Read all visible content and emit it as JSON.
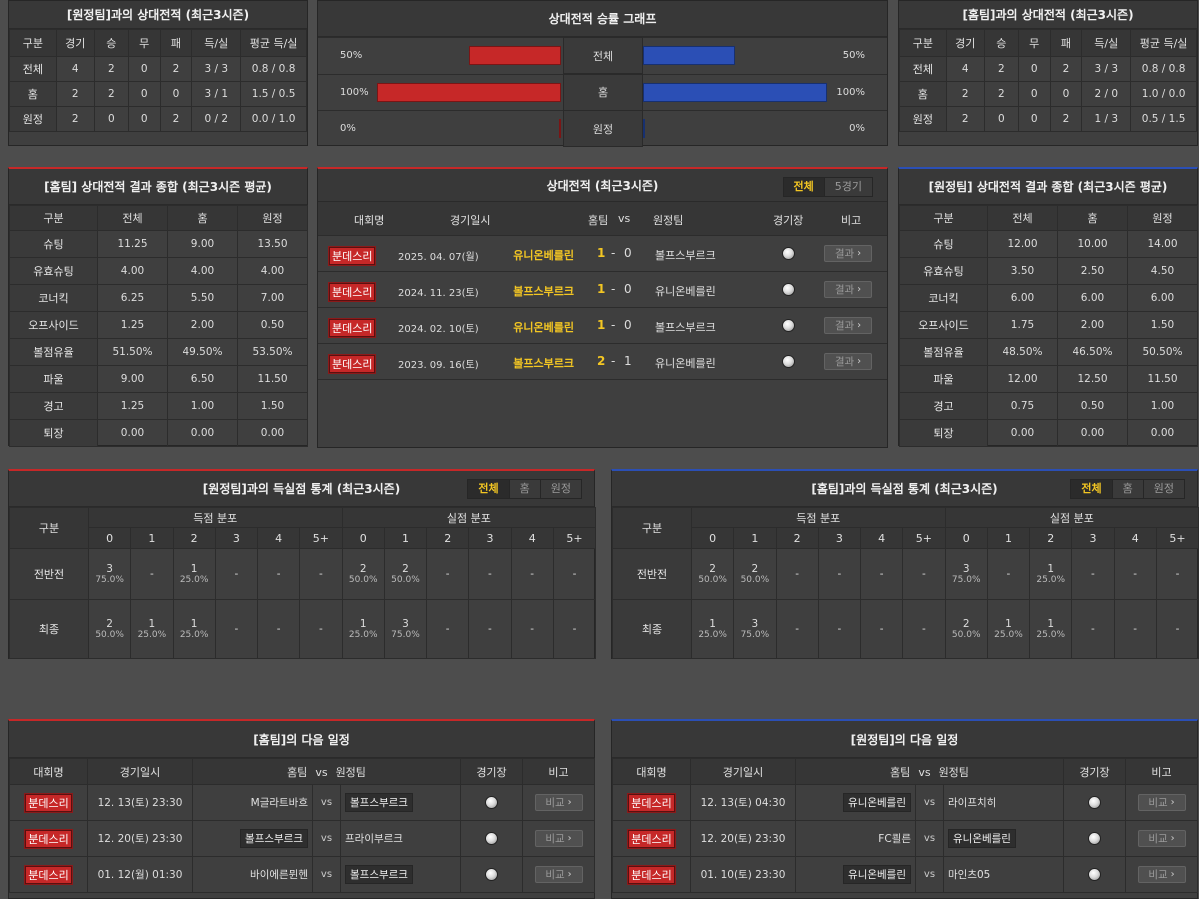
{
  "h2h_left": {
    "title": "[원정팀]과의 상대전적 (최근3시즌)",
    "headers": [
      "구분",
      "경기",
      "승",
      "무",
      "패",
      "득/실",
      "평균 득/실"
    ],
    "rows": [
      [
        "전체",
        "4",
        "2",
        "0",
        "2",
        "3 / 3",
        "0.8 / 0.8"
      ],
      [
        "홈",
        "2",
        "2",
        "0",
        "0",
        "3 / 1",
        "1.5 / 0.5"
      ],
      [
        "원정",
        "2",
        "0",
        "0",
        "2",
        "0 / 2",
        "0.0 / 1.0"
      ]
    ]
  },
  "h2h_right": {
    "title": "[홈팀]과의 상대전적 (최근3시즌)",
    "headers": [
      "구분",
      "경기",
      "승",
      "무",
      "패",
      "득/실",
      "평균 득/실"
    ],
    "rows": [
      [
        "전체",
        "4",
        "2",
        "0",
        "2",
        "3 / 3",
        "0.8 / 0.8"
      ],
      [
        "홈",
        "2",
        "2",
        "0",
        "0",
        "2 / 0",
        "1.0 / 0.0"
      ],
      [
        "원정",
        "2",
        "0",
        "0",
        "2",
        "1 / 3",
        "0.5 / 1.5"
      ]
    ]
  },
  "win_graph": {
    "title": "상대전적 승률 그래프",
    "rows": [
      {
        "label": "전체",
        "left": "50%",
        "right": "50%",
        "left_val": 50,
        "right_val": 50
      },
      {
        "label": "홈",
        "left": "100%",
        "right": "100%",
        "left_val": 100,
        "right_val": 100
      },
      {
        "label": "원정",
        "left": "0%",
        "right": "0%",
        "left_val": 0,
        "right_val": 0
      }
    ]
  },
  "summary_left": {
    "title": "[홈팀] 상대전적 결과 종합 (최근3시즌 평균)",
    "headers": [
      "구분",
      "전체",
      "홈",
      "원정"
    ],
    "rows": [
      [
        "슈팅",
        "11.25",
        "9.00",
        "13.50"
      ],
      [
        "유효슈팅",
        "4.00",
        "4.00",
        "4.00"
      ],
      [
        "코너킥",
        "6.25",
        "5.50",
        "7.00"
      ],
      [
        "오프사이드",
        "1.25",
        "2.00",
        "0.50"
      ],
      [
        "볼점유율",
        "51.50%",
        "49.50%",
        "53.50%"
      ],
      [
        "파울",
        "9.00",
        "6.50",
        "11.50"
      ],
      [
        "경고",
        "1.25",
        "1.00",
        "1.50"
      ],
      [
        "퇴장",
        "0.00",
        "0.00",
        "0.00"
      ]
    ]
  },
  "summary_right": {
    "title": "[원정팀] 상대전적 결과 종합 (최근3시즌 평균)",
    "headers": [
      "구분",
      "전체",
      "홈",
      "원정"
    ],
    "rows": [
      [
        "슈팅",
        "12.00",
        "10.00",
        "14.00"
      ],
      [
        "유효슈팅",
        "3.50",
        "2.50",
        "4.50"
      ],
      [
        "코너킥",
        "6.00",
        "6.00",
        "6.00"
      ],
      [
        "오프사이드",
        "1.75",
        "2.00",
        "1.50"
      ],
      [
        "볼점유율",
        "48.50%",
        "46.50%",
        "50.50%"
      ],
      [
        "파울",
        "12.00",
        "12.50",
        "11.50"
      ],
      [
        "경고",
        "0.75",
        "0.50",
        "1.00"
      ],
      [
        "퇴장",
        "0.00",
        "0.00",
        "0.00"
      ]
    ]
  },
  "h2h_matches": {
    "title": "상대전적 (최근3시즌)",
    "tabs": [
      "전체",
      "5경기"
    ],
    "headers": {
      "league": "대회명",
      "date": "경기일시",
      "home": "홈팀",
      "vs": "vs",
      "away": "원정팀",
      "stadium": "경기장",
      "note": "비고"
    },
    "rows": [
      {
        "league": "분데스리",
        "date": "2025. 04. 07(월)",
        "home": "유니온베를린",
        "score_h": "1",
        "dash": "-",
        "score_a": "0",
        "away": "볼프스부르크",
        "btn": "결과"
      },
      {
        "league": "분데스리",
        "date": "2024. 11. 23(토)",
        "home": "볼프스부르크",
        "score_h": "1",
        "dash": "-",
        "score_a": "0",
        "away": "유니온베를린",
        "btn": "결과"
      },
      {
        "league": "분데스리",
        "date": "2024. 02. 10(토)",
        "home": "유니온베를린",
        "score_h": "1",
        "dash": "-",
        "score_a": "0",
        "away": "볼프스부르크",
        "btn": "결과"
      },
      {
        "league": "분데스리",
        "date": "2023. 09. 16(토)",
        "home": "볼프스부르크",
        "score_h": "2",
        "dash": "-",
        "score_a": "1",
        "away": "유니온베를린",
        "btn": "결과"
      }
    ]
  },
  "goals_left": {
    "title": "[원정팀]과의 득실점 통계 (최근3시즌)",
    "tabs": [
      "전체",
      "홈",
      "원정"
    ],
    "col_label": "구분",
    "scored_label": "득점 분포",
    "conceded_label": "실점 분포",
    "buckets": [
      "0",
      "1",
      "2",
      "3",
      "4",
      "5+"
    ],
    "rows": [
      {
        "label": "전반전",
        "cells": [
          [
            "3",
            "75.0%"
          ],
          [
            "-",
            ""
          ],
          [
            "1",
            "25.0%"
          ],
          [
            "-",
            ""
          ],
          [
            "-",
            ""
          ],
          [
            "-",
            ""
          ],
          [
            "2",
            "50.0%"
          ],
          [
            "2",
            "50.0%"
          ],
          [
            "-",
            ""
          ],
          [
            "-",
            ""
          ],
          [
            "-",
            ""
          ],
          [
            "-",
            ""
          ]
        ]
      },
      {
        "label": "최종",
        "cells": [
          [
            "2",
            "50.0%"
          ],
          [
            "1",
            "25.0%"
          ],
          [
            "1",
            "25.0%"
          ],
          [
            "-",
            ""
          ],
          [
            "-",
            ""
          ],
          [
            "-",
            ""
          ],
          [
            "1",
            "25.0%"
          ],
          [
            "3",
            "75.0%"
          ],
          [
            "-",
            ""
          ],
          [
            "-",
            ""
          ],
          [
            "-",
            ""
          ],
          [
            "-",
            ""
          ]
        ]
      }
    ]
  },
  "goals_right": {
    "title": "[홈팀]과의 득실점 통계 (최근3시즌)",
    "tabs": [
      "전체",
      "홈",
      "원정"
    ],
    "col_label": "구분",
    "scored_label": "득점 분포",
    "conceded_label": "실점 분포",
    "buckets": [
      "0",
      "1",
      "2",
      "3",
      "4",
      "5+"
    ],
    "rows": [
      {
        "label": "전반전",
        "cells": [
          [
            "2",
            "50.0%"
          ],
          [
            "2",
            "50.0%"
          ],
          [
            "-",
            ""
          ],
          [
            "-",
            ""
          ],
          [
            "-",
            ""
          ],
          [
            "-",
            ""
          ],
          [
            "3",
            "75.0%"
          ],
          [
            "-",
            ""
          ],
          [
            "1",
            "25.0%"
          ],
          [
            "-",
            ""
          ],
          [
            "-",
            ""
          ],
          [
            "-",
            ""
          ]
        ]
      },
      {
        "label": "최종",
        "cells": [
          [
            "1",
            "25.0%"
          ],
          [
            "3",
            "75.0%"
          ],
          [
            "-",
            ""
          ],
          [
            "-",
            ""
          ],
          [
            "-",
            ""
          ],
          [
            "-",
            ""
          ],
          [
            "2",
            "50.0%"
          ],
          [
            "1",
            "25.0%"
          ],
          [
            "1",
            "25.0%"
          ],
          [
            "-",
            ""
          ],
          [
            "-",
            ""
          ],
          [
            "-",
            ""
          ]
        ]
      }
    ]
  },
  "next_left": {
    "title": "[홈팀]의 다음 일정",
    "headers": {
      "league": "대회명",
      "date": "경기일시",
      "home": "홈팀",
      "vs": "vs",
      "away": "원정팀",
      "stadium": "경기장",
      "note": "비고"
    },
    "rows": [
      {
        "league": "분데스리",
        "date": "12. 13(토) 23:30",
        "home": "M글라트바흐",
        "vs": "vs",
        "away": "볼프스부르크",
        "highlight": "away",
        "btn": "비교"
      },
      {
        "league": "분데스리",
        "date": "12. 20(토) 23:30",
        "home": "볼프스부르크",
        "vs": "vs",
        "away": "프라이부르크",
        "highlight": "home",
        "btn": "비교"
      },
      {
        "league": "분데스리",
        "date": "01. 12(월) 01:30",
        "home": "바이에른뮌헨",
        "vs": "vs",
        "away": "볼프스부르크",
        "highlight": "away",
        "btn": "비교"
      }
    ]
  },
  "next_right": {
    "title": "[원정팀]의 다음 일정",
    "headers": {
      "league": "대회명",
      "date": "경기일시",
      "home": "홈팀",
      "vs": "vs",
      "away": "원정팀",
      "stadium": "경기장",
      "note": "비고"
    },
    "rows": [
      {
        "league": "분데스리",
        "date": "12. 13(토) 04:30",
        "home": "유니온베를린",
        "vs": "vs",
        "away": "라이프치히",
        "highlight": "home",
        "btn": "비교"
      },
      {
        "league": "분데스리",
        "date": "12. 20(토) 23:30",
        "home": "FC쾰른",
        "vs": "vs",
        "away": "유니온베를린",
        "highlight": "away",
        "btn": "비교"
      },
      {
        "league": "분데스리",
        "date": "01. 10(토) 23:30",
        "home": "유니온베를린",
        "vs": "vs",
        "away": "마인츠05",
        "highlight": "home",
        "btn": "비교"
      }
    ]
  },
  "colors": {
    "accent_red": "#c62828",
    "accent_blue": "#2b4fb5",
    "highlight": "#f3c623"
  }
}
